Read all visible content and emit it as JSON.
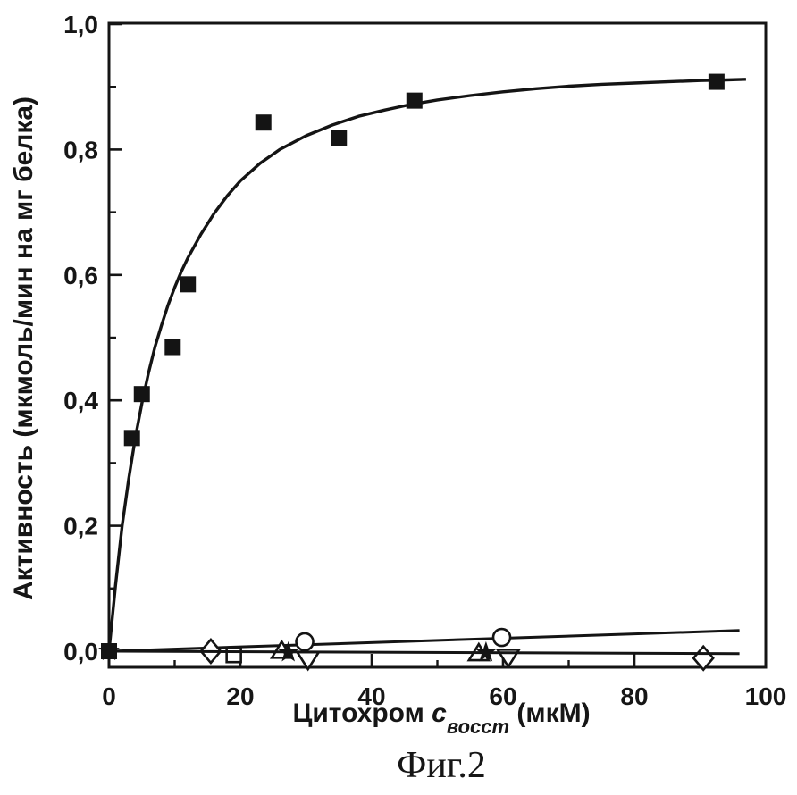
{
  "figure": {
    "caption": "Фиг.2"
  },
  "chart_data": {
    "type": "scatter",
    "title": "",
    "ylabel": "Активность (мкмоль/мин на мг белка)",
    "xlabel_parts": {
      "prefix": "Цитохром ",
      "symbol": "с",
      "subscript": "восст",
      "suffix": " (мкМ)"
    },
    "xlim": [
      0,
      100
    ],
    "ylim": [
      -0.026,
      1.0
    ],
    "grid": false,
    "legend": "none",
    "x_ticks": [
      {
        "value": 0,
        "label": "0"
      },
      {
        "value": 20,
        "label": "20"
      },
      {
        "value": 40,
        "label": "40"
      },
      {
        "value": 60,
        "label": "60"
      },
      {
        "value": 80,
        "label": "80"
      },
      {
        "value": 100,
        "label": "100"
      }
    ],
    "x_minor_ticks": [
      10,
      30,
      50,
      70,
      90
    ],
    "y_ticks": [
      {
        "value": 0.0,
        "label": "0,0"
      },
      {
        "value": 0.2,
        "label": "0,2"
      },
      {
        "value": 0.4,
        "label": "0,4"
      },
      {
        "value": 0.6,
        "label": "0,6"
      },
      {
        "value": 0.8,
        "label": "0,8"
      },
      {
        "value": 1.0,
        "label": "1,0"
      }
    ],
    "y_minor_ticks": [
      0.1,
      0.3,
      0.5,
      0.7,
      0.9
    ],
    "colors": {
      "ink": "#141414",
      "background": "#ffffff"
    },
    "series": [
      {
        "name": "filled-squares-main",
        "marker": "filled-square",
        "points": [
          [
            0,
            0
          ],
          [
            3.5,
            0.34
          ],
          [
            5,
            0.41
          ],
          [
            9.7,
            0.485
          ],
          [
            12,
            0.585
          ],
          [
            23.5,
            0.843
          ],
          [
            35,
            0.818
          ],
          [
            46.5,
            0.878
          ],
          [
            92.5,
            0.908
          ]
        ],
        "fit_curve": [
          [
            0,
            0
          ],
          [
            1,
            0.105
          ],
          [
            2,
            0.2
          ],
          [
            3,
            0.275
          ],
          [
            4,
            0.34
          ],
          [
            5,
            0.395
          ],
          [
            6,
            0.443
          ],
          [
            7,
            0.485
          ],
          [
            8,
            0.52
          ],
          [
            9,
            0.552
          ],
          [
            10,
            0.58
          ],
          [
            11,
            0.605
          ],
          [
            12,
            0.627
          ],
          [
            14,
            0.665
          ],
          [
            16,
            0.698
          ],
          [
            18,
            0.726
          ],
          [
            20,
            0.75
          ],
          [
            23,
            0.778
          ],
          [
            26,
            0.8
          ],
          [
            30,
            0.822
          ],
          [
            34,
            0.839
          ],
          [
            38,
            0.853
          ],
          [
            42,
            0.863
          ],
          [
            46,
            0.872
          ],
          [
            50,
            0.879
          ],
          [
            55,
            0.886
          ],
          [
            60,
            0.892
          ],
          [
            65,
            0.897
          ],
          [
            70,
            0.901
          ],
          [
            75,
            0.904
          ],
          [
            80,
            0.906
          ],
          [
            85,
            0.908
          ],
          [
            90,
            0.91
          ],
          [
            94,
            0.911
          ],
          [
            97,
            0.912
          ]
        ]
      },
      {
        "name": "open-circles",
        "marker": "open-circle",
        "points": [
          [
            29.8,
            0.015
          ],
          [
            59.8,
            0.022
          ]
        ],
        "fit_line": [
          [
            0,
            0
          ],
          [
            96,
            0.033
          ]
        ]
      },
      {
        "name": "open-squares",
        "marker": "open-square",
        "points": [
          [
            19,
            -0.006
          ]
        ]
      },
      {
        "name": "open-diamonds",
        "marker": "open-diamond",
        "points": [
          [
            15.5,
            0.0
          ],
          [
            90.5,
            -0.011
          ]
        ]
      },
      {
        "name": "open-triangles-up",
        "marker": "open-triangle-up",
        "points": [
          [
            26.3,
            0.001
          ],
          [
            56.3,
            -0.003
          ]
        ]
      },
      {
        "name": "open-triangles-down",
        "marker": "open-triangle-down",
        "points": [
          [
            30.3,
            -0.013
          ],
          [
            60.8,
            -0.009
          ]
        ]
      },
      {
        "name": "filled-stars",
        "marker": "filled-star",
        "points": [
          [
            0,
            0
          ],
          [
            27.3,
            -0.002
          ],
          [
            57.4,
            -0.002
          ]
        ],
        "fit_line": [
          [
            0,
            0
          ],
          [
            96,
            -0.004
          ]
        ]
      }
    ]
  }
}
